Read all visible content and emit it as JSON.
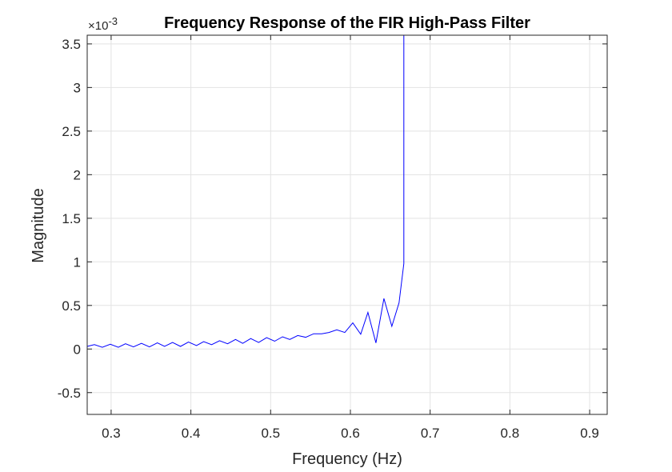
{
  "chart_data": {
    "type": "line",
    "title": "Frequency Response of the FIR High-Pass Filter",
    "xlabel": "Frequency (Hz)",
    "ylabel": "Magnitude",
    "y_exponent_label": "×10",
    "y_exponent_power": "-3",
    "xlim": [
      0.27,
      0.922
    ],
    "ylim": [
      -0.75,
      3.6
    ],
    "xticks": [
      0.3,
      0.4,
      0.5,
      0.6,
      0.7,
      0.8,
      0.9
    ],
    "xtick_labels": [
      "0.3",
      "0.4",
      "0.5",
      "0.6",
      "0.7",
      "0.8",
      "0.9"
    ],
    "yticks": [
      -0.5,
      0,
      0.5,
      1,
      1.5,
      2,
      2.5,
      3,
      3.5
    ],
    "ytick_labels": [
      "-0.5",
      "0",
      "0.5",
      "1",
      "1.5",
      "2",
      "2.5",
      "3",
      "3.5"
    ],
    "grid": true,
    "line_color": "#0000ff",
    "series": [
      {
        "x": [
          0.27,
          0.279,
          0.289,
          0.299,
          0.309,
          0.318,
          0.328,
          0.338,
          0.348,
          0.358,
          0.367,
          0.377,
          0.387,
          0.397,
          0.407,
          0.416,
          0.426,
          0.436,
          0.446,
          0.456,
          0.465,
          0.475,
          0.485,
          0.495,
          0.505,
          0.515,
          0.524,
          0.534,
          0.544,
          0.554,
          0.564,
          0.573,
          0.583,
          0.593,
          0.603,
          0.613,
          0.622,
          0.632,
          0.642,
          0.652,
          0.661,
          0.667
        ],
        "values": [
          0.03,
          0.05,
          0.02,
          0.055,
          0.02,
          0.06,
          0.025,
          0.065,
          0.025,
          0.07,
          0.03,
          0.075,
          0.03,
          0.08,
          0.04,
          0.085,
          0.05,
          0.095,
          0.06,
          0.11,
          0.065,
          0.12,
          0.075,
          0.13,
          0.09,
          0.14,
          0.11,
          0.155,
          0.135,
          0.175,
          0.175,
          0.19,
          0.22,
          0.19,
          0.3,
          0.17,
          0.42,
          0.07,
          0.58,
          0.26,
          0.53,
          0.98
        ]
      }
    ]
  }
}
